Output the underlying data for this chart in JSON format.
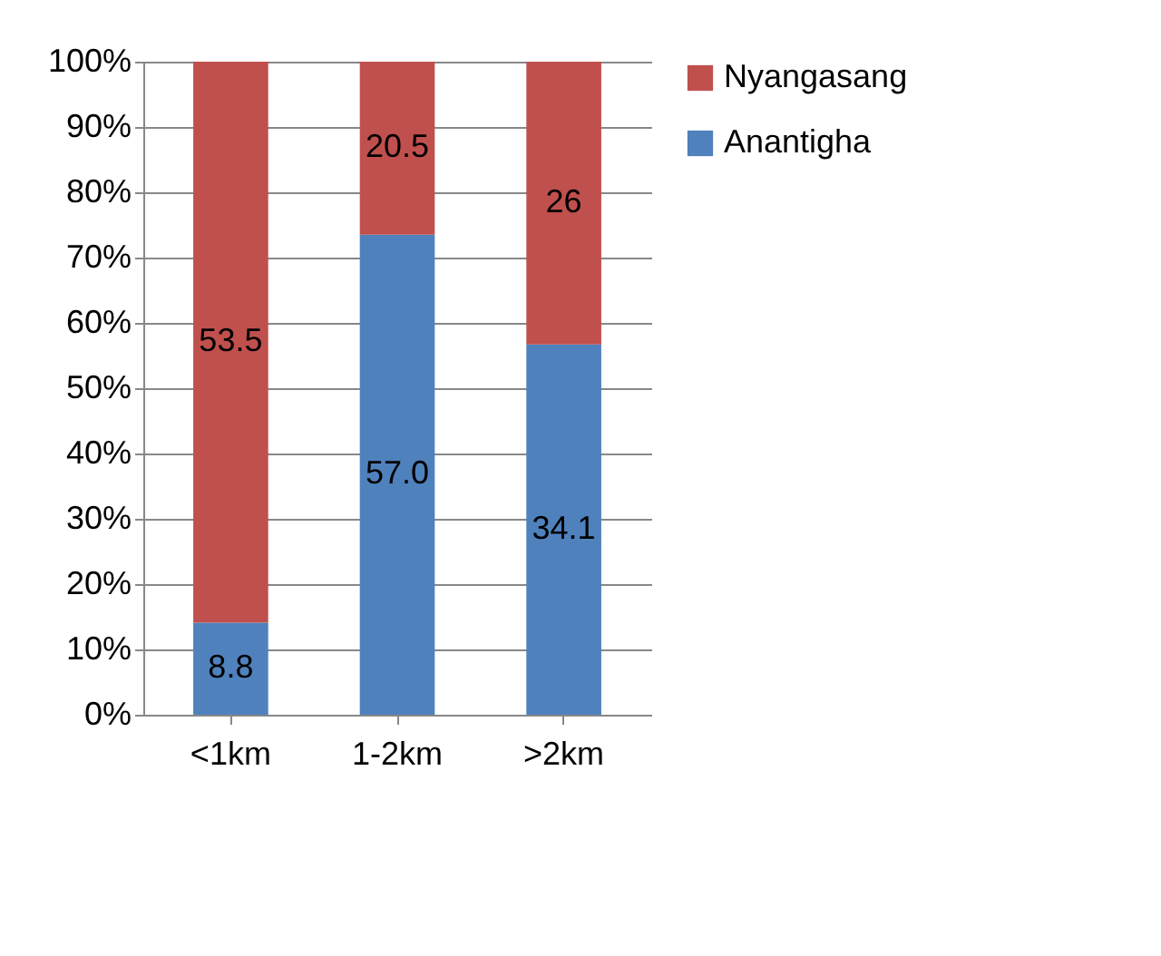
{
  "chart_data": {
    "type": "bar",
    "stacked": true,
    "categories": [
      "<1km",
      "1-2km",
      ">2km"
    ],
    "series": [
      {
        "name": "Anantigha",
        "color": "#4f81bd",
        "values": [
          14.1,
          73.5,
          56.7
        ]
      },
      {
        "name": "Nyangasang",
        "color": "#c0504d",
        "values": [
          85.9,
          26.5,
          43.3
        ]
      }
    ],
    "annotations": [
      "8.8",
      "57.0",
      "34.1",
      "53.5",
      "20.5",
      "26"
    ],
    "ylim": [
      0,
      100
    ],
    "yticks": [
      {
        "value": 0,
        "label": "0%"
      },
      {
        "value": 10,
        "label": "10%"
      },
      {
        "value": 20,
        "label": "20%"
      },
      {
        "value": 30,
        "label": "30%"
      },
      {
        "value": 40,
        "label": "40%"
      },
      {
        "value": 50,
        "label": "50%"
      },
      {
        "value": 60,
        "label": "60%"
      },
      {
        "value": 70,
        "label": "70%"
      },
      {
        "value": 80,
        "label": "80%"
      },
      {
        "value": 90,
        "label": "90%"
      },
      {
        "value": 100,
        "label": "100%"
      }
    ],
    "grid": "y",
    "legend": "right"
  }
}
